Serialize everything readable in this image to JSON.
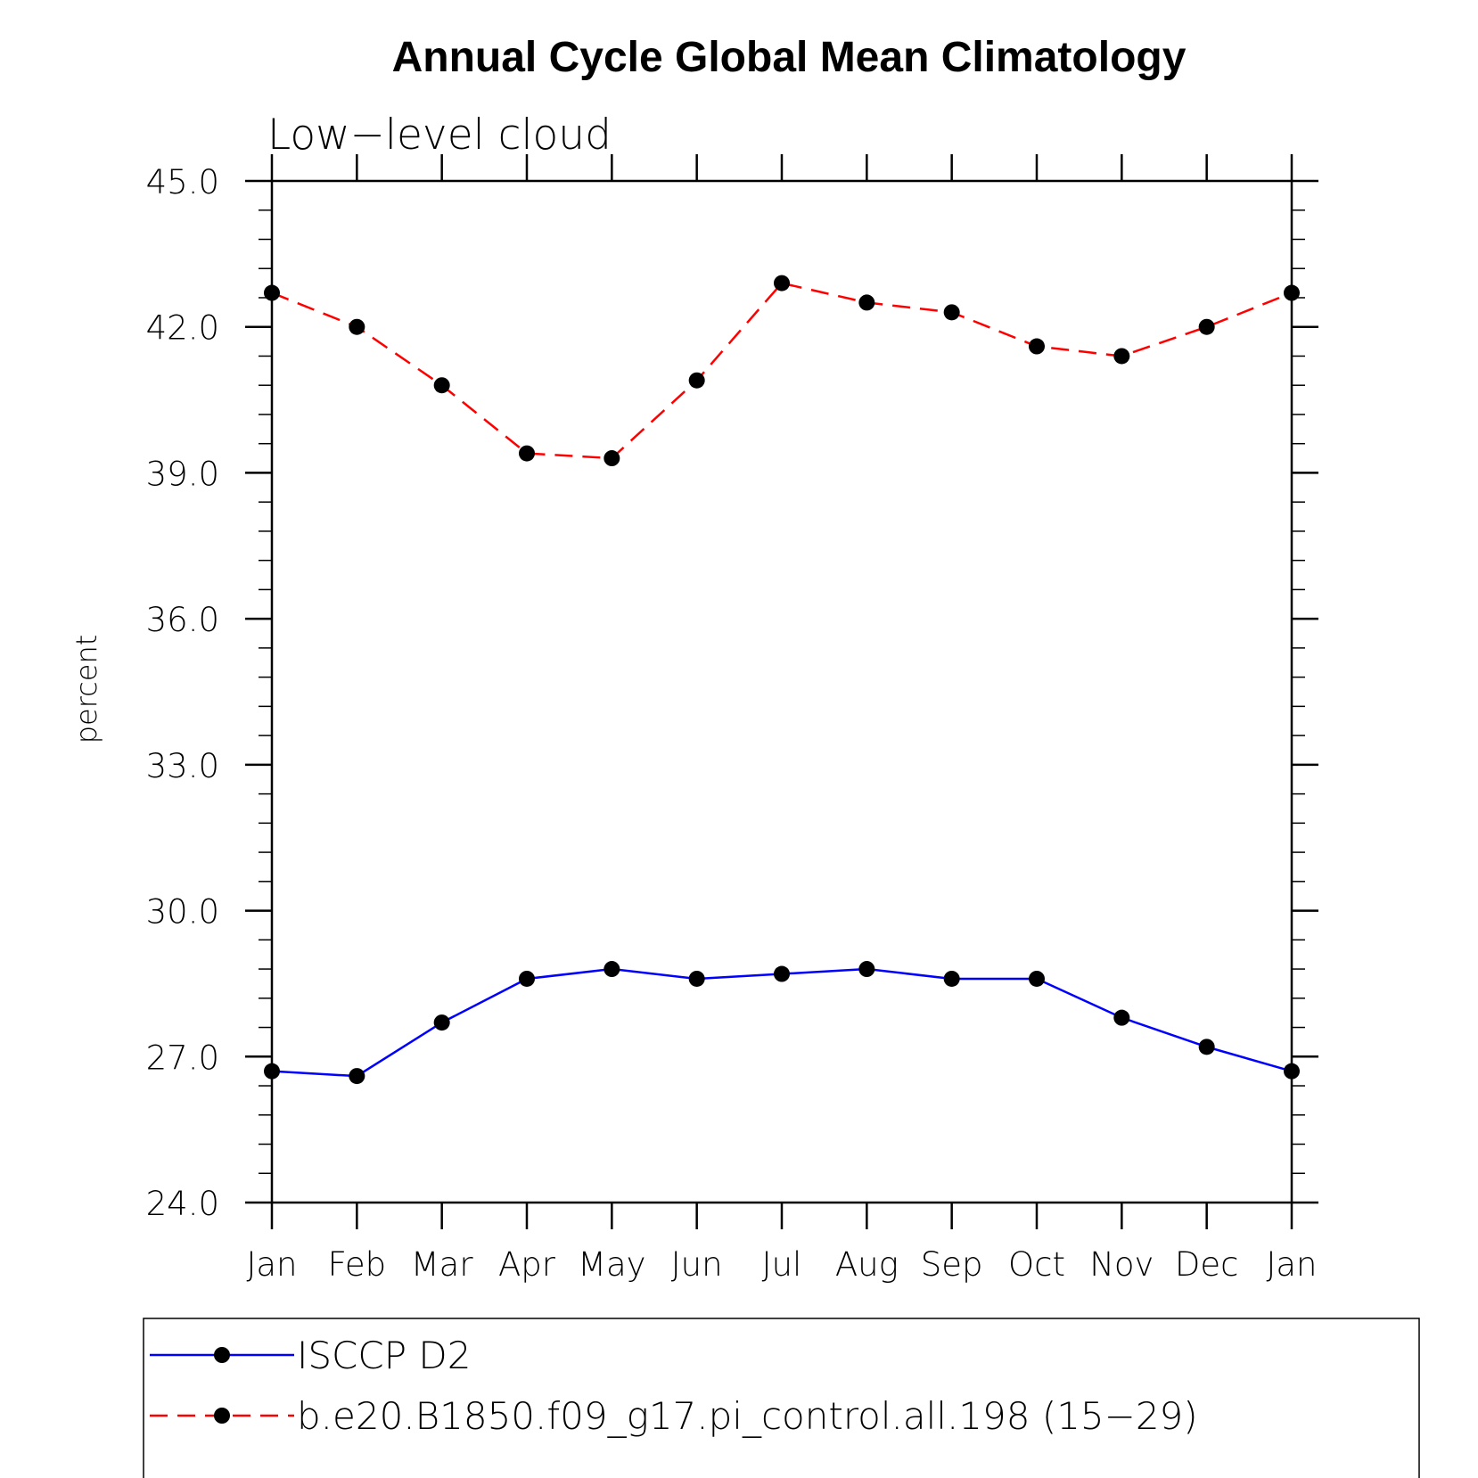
{
  "chart_data": {
    "type": "line",
    "title": "Annual Cycle Global Mean Climatology",
    "subtitle": "Low−level cloud",
    "ylabel": "percent",
    "ylim": [
      24.0,
      45.0
    ],
    "yticks": [
      "24.0",
      "27.0",
      "30.0",
      "33.0",
      "36.0",
      "39.0",
      "42.0",
      "45.0"
    ],
    "categories": [
      "Jan",
      "Feb",
      "Mar",
      "Apr",
      "May",
      "Jun",
      "Jul",
      "Aug",
      "Sep",
      "Oct",
      "Nov",
      "Dec",
      "Jan"
    ],
    "series": [
      {
        "name": "ISCCP D2",
        "color": "#0000ff",
        "dash": "solid",
        "marker": "filled-circle",
        "values": [
          26.7,
          26.6,
          27.7,
          28.6,
          28.8,
          28.6,
          28.7,
          28.8,
          28.6,
          28.6,
          27.8,
          27.2,
          26.7
        ]
      },
      {
        "name": "b.e20.B1850.f09_g17.pi_control.all.198 (15−29)",
        "color": "#ff0000",
        "dash": "dashed",
        "marker": "filled-circle",
        "values": [
          42.7,
          42.0,
          40.8,
          39.4,
          39.3,
          40.9,
          42.9,
          42.5,
          42.3,
          41.6,
          41.4,
          42.0,
          42.7
        ]
      }
    ],
    "legend": "bottom"
  }
}
